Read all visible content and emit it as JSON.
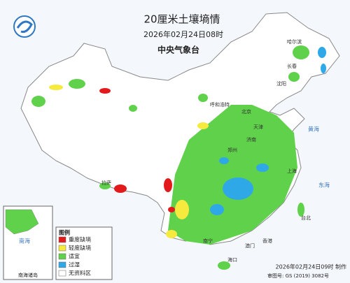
{
  "header": {
    "title": "20厘米土壤墒情",
    "time": "2026年02月24日08时",
    "agency": "中央气象台"
  },
  "legend": {
    "title": "图例",
    "items": [
      {
        "label": "重度缺墒",
        "color": "#e31a1c"
      },
      {
        "label": "轻度缺墒",
        "color": "#f5ea3d"
      },
      {
        "label": "适宜",
        "color": "#5fd14a"
      },
      {
        "label": "过湿",
        "color": "#2fa8e8"
      },
      {
        "label": "无资料区",
        "color": "#ffffff"
      }
    ]
  },
  "inset": {
    "title": "南海诸岛",
    "sea": "南海"
  },
  "seas": [
    "黄海",
    "东海"
  ],
  "places": [
    "哈尔滨",
    "长春",
    "沈阳",
    "呼和浩特",
    "北京",
    "天津",
    "济南",
    "郑州",
    "上海",
    "拉萨",
    "台北",
    "香港",
    "澳门",
    "海口",
    "南宁"
  ],
  "footer": {
    "made": "2026年02月24日09时 制作",
    "approval": "审图号: GS (2019) 3082号"
  }
}
